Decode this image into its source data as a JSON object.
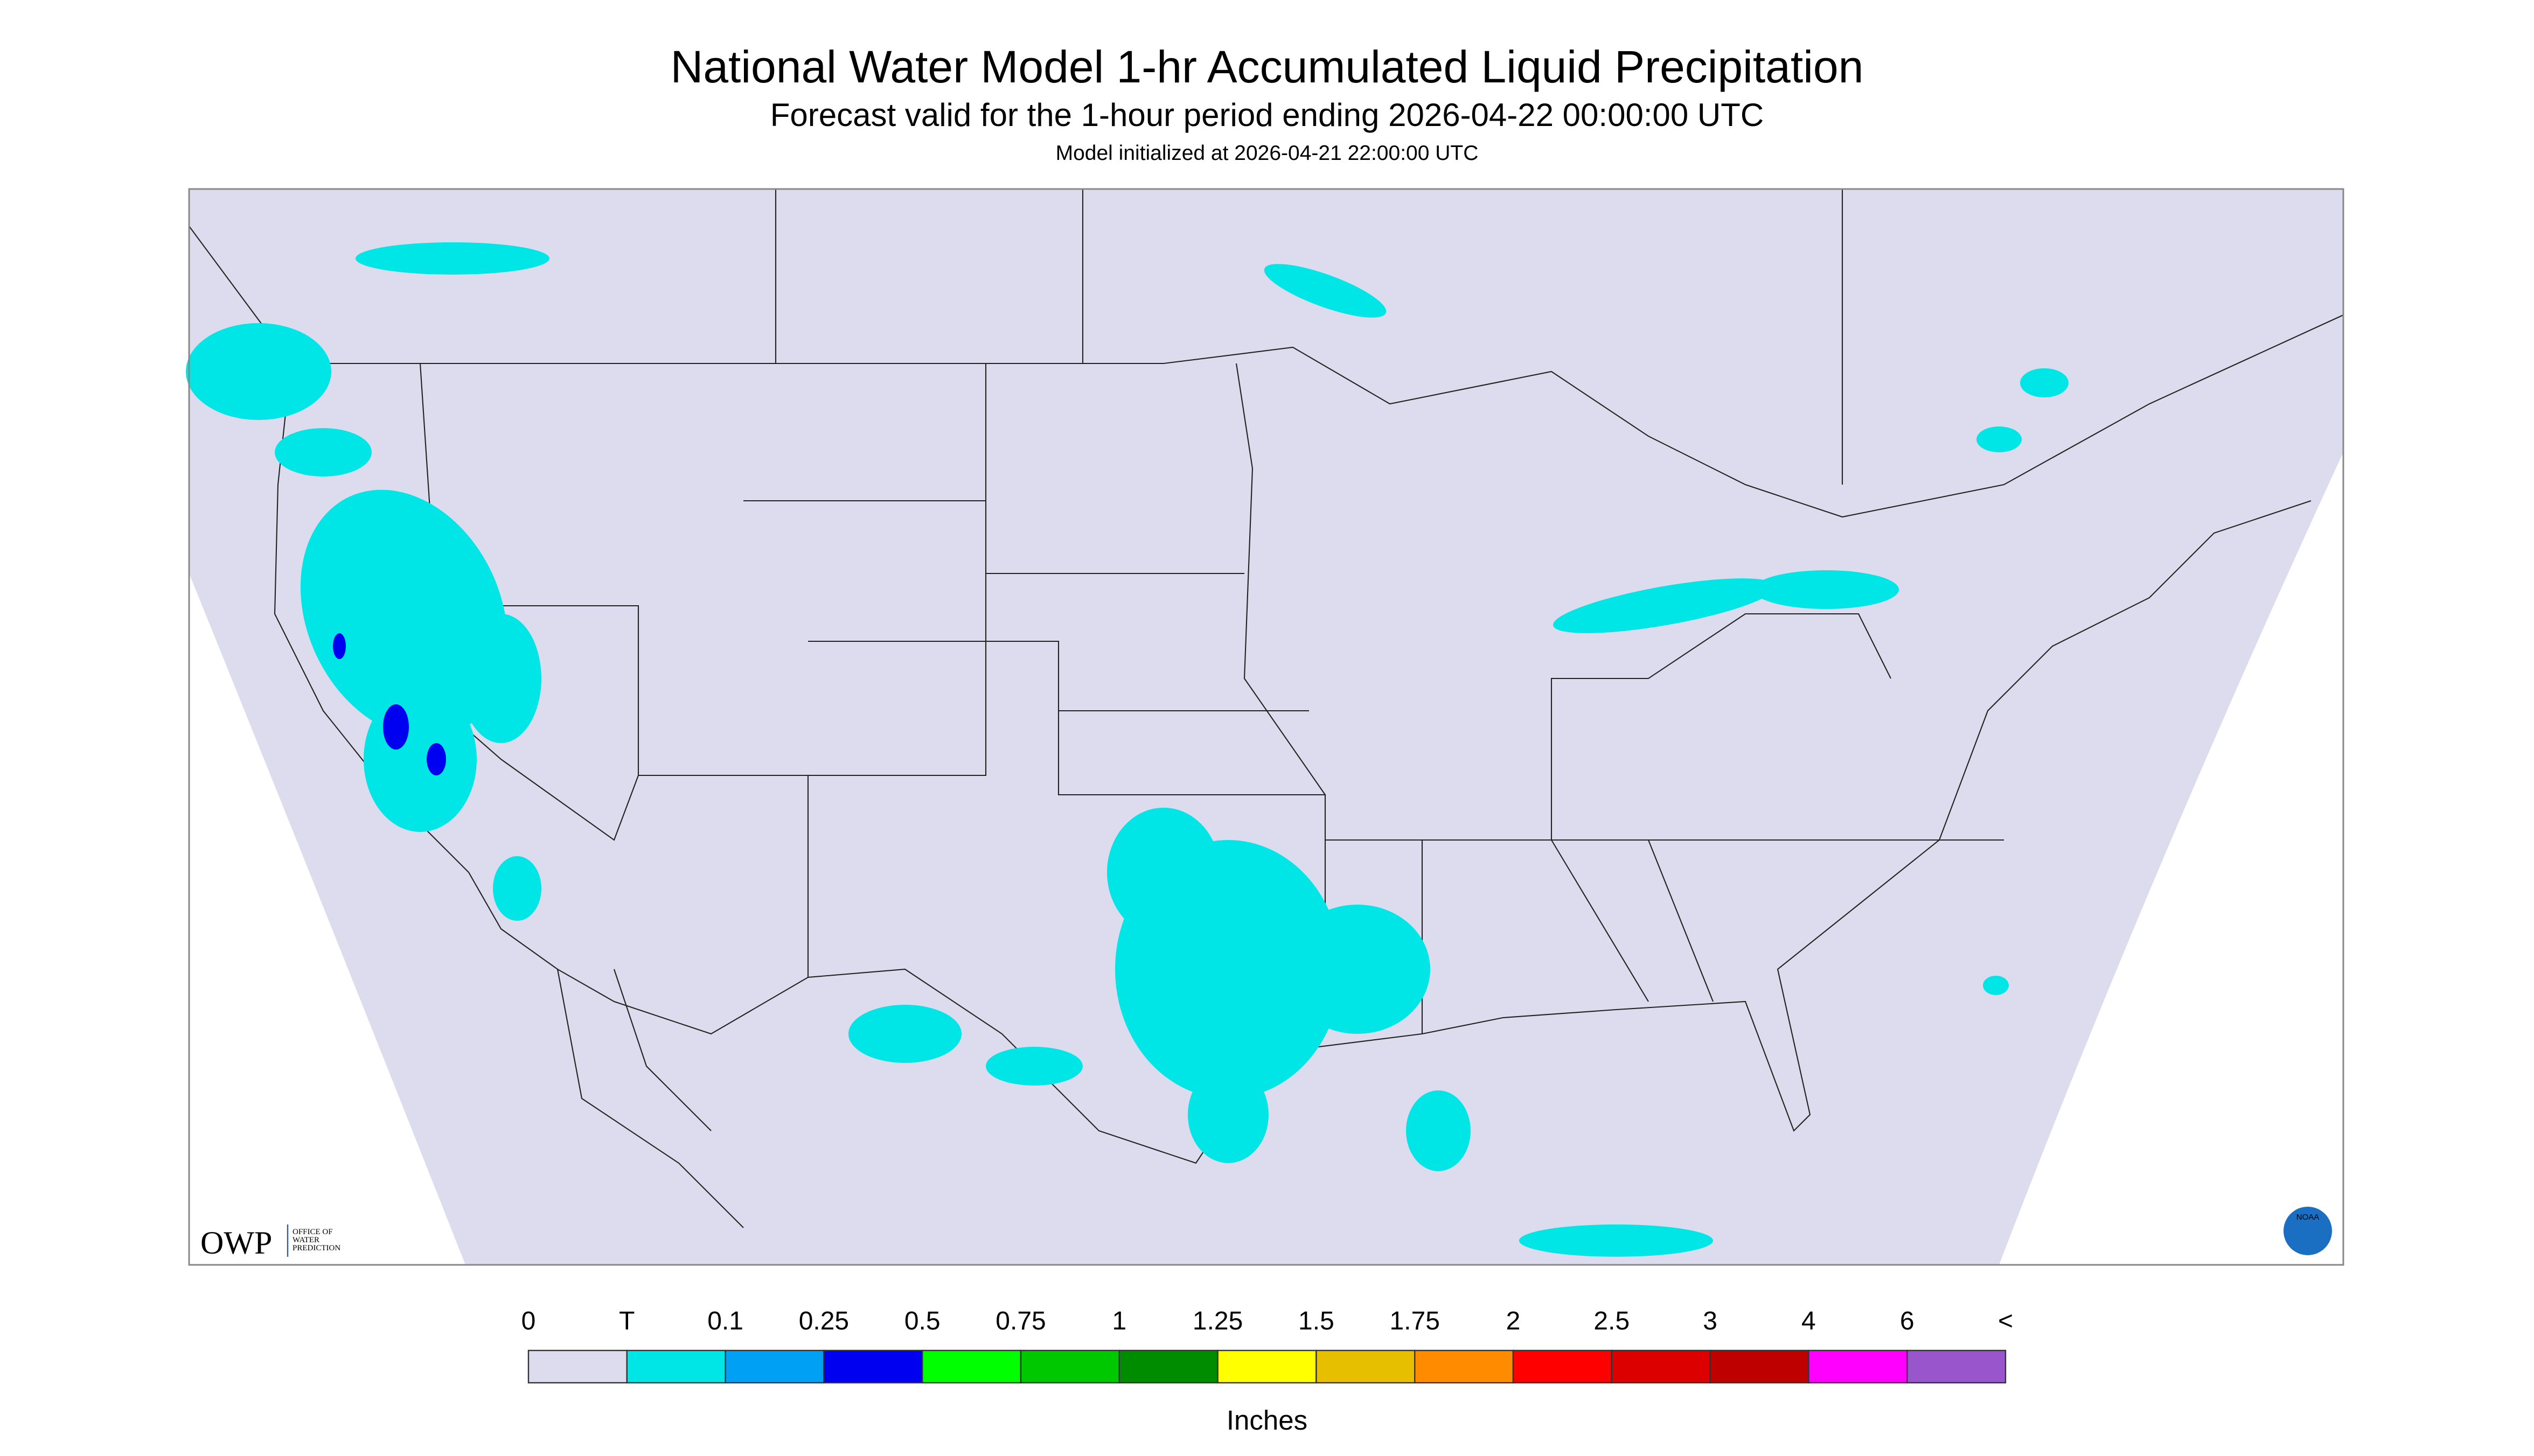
{
  "header": {
    "title": "National Water Model 1-hr Accumulated Liquid Precipitation",
    "subtitle": "Forecast valid for the 1-hour period ending 2026-04-22 00:00:00 UTC",
    "note": "Model initialized at 2026-04-21 22:00:00 UTC"
  },
  "logos": {
    "owp": "OWP",
    "owp_text": [
      "OFFICE OF",
      "WATER",
      "PREDICTION"
    ],
    "noaa": "NOAA"
  },
  "legend": {
    "labels": [
      "0",
      "T",
      "0.1",
      "0.25",
      "0.5",
      "0.75",
      "1",
      "1.25",
      "1.5",
      "1.75",
      "2",
      "2.5",
      "3",
      "4",
      "6",
      "<"
    ],
    "colors": [
      "#dcdcee",
      "#00e6e6",
      "#00a0f5",
      "#0000f0",
      "#00ff00",
      "#00c800",
      "#008c00",
      "#ffff00",
      "#e6c000",
      "#ff8c00",
      "#ff0000",
      "#dc0000",
      "#be0000",
      "#ff00ff",
      "#9955cc"
    ],
    "unit": "Inches"
  }
}
